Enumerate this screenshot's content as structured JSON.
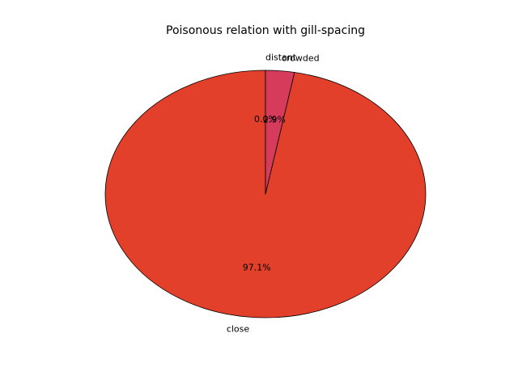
{
  "chart_data": {
    "type": "pie",
    "title": "Poisonous relation with gill-spacing",
    "categories": [
      "close",
      "crowded",
      "distant"
    ],
    "values": [
      97.1,
      2.9,
      0.0
    ],
    "value_labels": [
      "97.1%",
      "2.9%",
      "0.0%"
    ],
    "colors": [
      "#e2402a",
      "#d63b5c",
      "#d63b5c"
    ],
    "start_angle_deg": 90,
    "direction": "counterclockwise",
    "edge_color": "#000000",
    "legend": "none"
  }
}
